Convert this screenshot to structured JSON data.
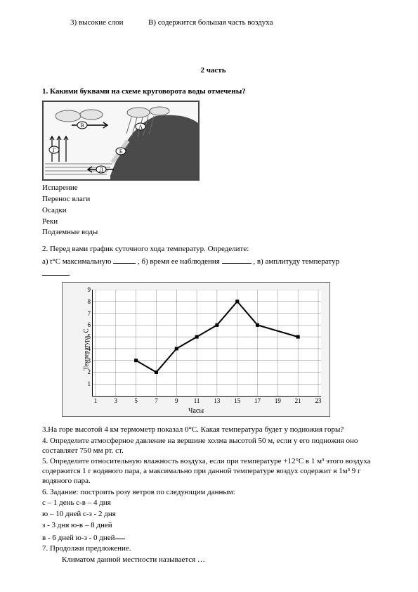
{
  "top_row": {
    "left": "3) высокие слои",
    "right": "В) содержится большая часть воздуха"
  },
  "part_title": "2 часть",
  "q1": {
    "prompt": "1. Какими буквами на схеме круговорота воды отмечены?",
    "answers": [
      "Испарение",
      "Перенос влаги",
      "Осадки",
      "Реки",
      "Подземные воды"
    ]
  },
  "q2": {
    "prompt": "2. Перед вами график суточного хода температур. Определите:",
    "line_a_prefix": "а) t°С максимальную ",
    "line_b_prefix": " , б) время ее наблюдения ",
    "line_c_prefix": " , в) амплитуду температур",
    "trailing_dot": "."
  },
  "chart": {
    "type": "line",
    "x_label": "Часы",
    "y_label": "Температура, С",
    "ylim": [
      0,
      9
    ],
    "ytick_step": 1,
    "x_ticks": [
      1,
      3,
      5,
      7,
      9,
      11,
      13,
      15,
      17,
      19,
      21,
      23
    ],
    "x_values": [
      1,
      3,
      5,
      7,
      9,
      11,
      13,
      15,
      17,
      19,
      21,
      23
    ],
    "y_values": [
      null,
      null,
      3,
      2,
      4,
      5,
      6,
      8,
      6,
      null,
      5,
      null
    ],
    "series_points_x": [
      5,
      7,
      9,
      11,
      13,
      15,
      17,
      21
    ],
    "series_points_y": [
      3,
      2,
      4,
      5,
      6,
      8,
      6,
      5
    ],
    "line_color": "#000000",
    "grid_color": "#888888",
    "background_color": "#ffffff",
    "tick_fontsize": 9,
    "label_fontsize": 10
  },
  "q3": {
    "text": "3.На горе высотой 4 км термометр показал 0°С. Какая температура будет у подножия горы?"
  },
  "q4": {
    "text": "4. Определите атмосферное давление на вершине холма высотой 50 м, если у его подножия оно составляет 750 мм рт. ст."
  },
  "q5": {
    "text": "5. Определите относительную влажность воздуха, если при температуре +12°С в 1 м³ этого воздуха содержится 1 г водяного пара, а максимально при данной температуре воздух содержит  в 1м³  9 г водяного пара."
  },
  "q6": {
    "title": "6. Задание: построить розу ветров по следующим данным:",
    "rows": [
      "с – 1 день с-в – 4 дня",
      "ю – 10 дней с-з - 2 дня",
      "з - 3  дня ю-в – 8 дней",
      "в - 6 дней ю-з - 0 дней"
    ]
  },
  "q7": {
    "title": "7. Продолжи предложение.",
    "line": "Климатом данной местности называется …"
  },
  "diagram": {
    "type": "infographic",
    "labels": [
      "А",
      "Б",
      "В",
      "Д",
      "Г"
    ],
    "mountain_color": "#4a4a4a",
    "cloud_color": "#e4e4e4",
    "water_color": "#dedede",
    "rain_color": "#6b6b6b",
    "background_color": "#f7f7f7",
    "letter_circle_fill": "#ffffff",
    "letter_circle_stroke": "#000000",
    "label_fontsize": 8
  }
}
